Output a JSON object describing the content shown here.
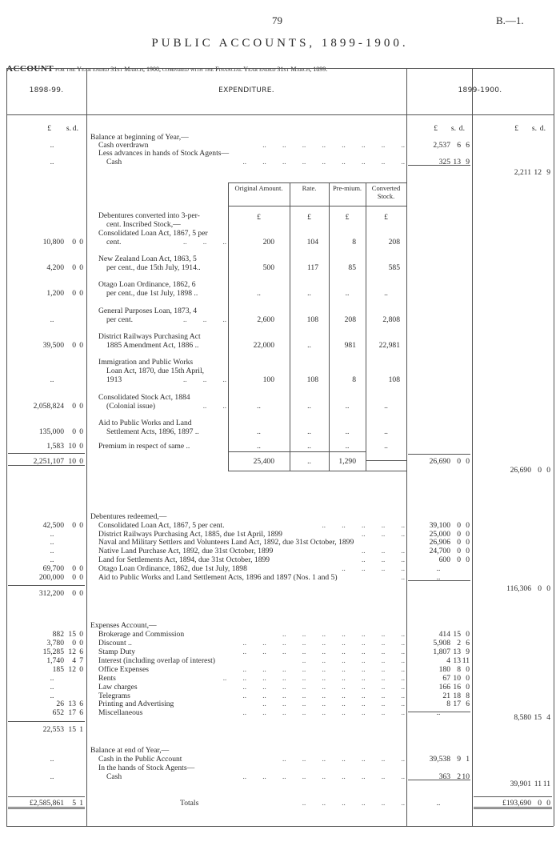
{
  "header": {
    "page_number": "79",
    "ref": "B.—1.",
    "title": "PUBLIC ACCOUNTS, 1899-1900.",
    "subtitle_bold": "ACCOUNT",
    "subtitle_rest": "for the Year ended 31st March, 1900, compared with the Financial Year ended 31st March, 1899."
  },
  "table": {
    "col_headers": [
      "1898-99.",
      "EXPENDITURE.",
      "1899-1900."
    ],
    "currency_header": [
      "£",
      "s.",
      "d."
    ]
  },
  "conversion": {
    "headers": [
      "Original Amount.",
      "Rate.",
      "Pre-mium.",
      "Converted Stock."
    ],
    "currency": [
      "£",
      "£",
      "£",
      "£"
    ]
  },
  "lines": [
    {
      "t": "Balance at beginning of Year,—",
      "i": 0
    },
    {
      "t": "Cash overdrawn",
      "i": 1,
      "dots": ".. .. .. .. .. .. .. ..",
      "p": "..",
      "c": [
        "2,537",
        "6",
        "6"
      ]
    },
    {
      "t": "Less advances in hands of Stock Agents—",
      "i": 1
    },
    {
      "t": "Cash",
      "i": 2,
      "dots": ".. .. .. .. .. .. .. .. ..",
      "p": "..",
      "c": [
        "325",
        "13",
        "9"
      ]
    },
    {
      "k": [
        "2,211",
        "12",
        "9"
      ]
    },
    {
      "t": "Debentures converted into 3-per-",
      "i": 1,
      "n": 1
    },
    {
      "t": "cent. Inscribed Stock,—",
      "i": 2,
      "n": 1
    },
    {
      "t": "Consolidated Loan Act, 1867, 5 per",
      "i": 1,
      "n": 1
    },
    {
      "t": "cent.",
      "i": 2,
      "n": 1,
      "dots": ".. .. ..",
      "p": [
        "10,800",
        "0",
        "0"
      ],
      "v": [
        "200",
        "104",
        "8",
        "208"
      ]
    },
    {
      "t": "New Zealand Loan Act, 1863, 5",
      "i": 1,
      "n": 1
    },
    {
      "t": "per cent., due 15th July, 1914..",
      "i": 2,
      "n": 1,
      "p": [
        "4,200",
        "0",
        "0"
      ],
      "v": [
        "500",
        "117",
        "85",
        "585"
      ]
    },
    {
      "t": "Otago Loan Ordinance, 1862, 6",
      "i": 1,
      "n": 1
    },
    {
      "t": "per cent., due 1st July, 1898 ..",
      "i": 2,
      "n": 1,
      "p": [
        "1,200",
        "0",
        "0"
      ],
      "v": [
        "..",
        "..",
        "..",
        ".."
      ]
    },
    {
      "t": "General Purposes Loan, 1873, 4",
      "i": 1,
      "n": 1
    },
    {
      "t": "per cent.",
      "i": 2,
      "n": 1,
      "dots": ".. .. ..",
      "p": "..",
      "v": [
        "2,600",
        "108",
        "208",
        "2,808"
      ]
    },
    {
      "t": "District Railways Purchasing Act",
      "i": 1,
      "n": 1
    },
    {
      "t": "1885 Amendment Act, 1886 ..",
      "i": 2,
      "n": 1,
      "p": [
        "39,500",
        "0",
        "0"
      ],
      "v": [
        "22,000",
        "..",
        "981",
        "22,981"
      ]
    },
    {
      "t": "Immigration and Public Works",
      "i": 1,
      "n": 1
    },
    {
      "t": "Loan Act, 1870, due 15th April,",
      "i": 2,
      "n": 1
    },
    {
      "t": "1913",
      "i": 2,
      "n": 1,
      "dots": ".. .. ..",
      "p": "..",
      "v": [
        "100",
        "108",
        "8",
        "108"
      ]
    },
    {
      "t": "Consolidated Stock Act, 1884",
      "i": 1,
      "n": 1
    },
    {
      "t": "(Colonial issue)",
      "i": 2,
      "n": 1,
      "dots": ".. ..",
      "p": [
        "2,058,824",
        "0",
        "0"
      ],
      "v": [
        "..",
        "..",
        "..",
        ".."
      ]
    },
    {
      "t": "Aid to Public Works and Land",
      "i": 1,
      "n": 1
    },
    {
      "t": "Settlement Acts, 1896, 1897 ..",
      "i": 2,
      "n": 1,
      "p": [
        "135,000",
        "0",
        "0"
      ],
      "v": [
        "..",
        "..",
        "..",
        ".."
      ]
    },
    {
      "t": "Premium in respect of same ..",
      "i": 1,
      "n": 1,
      "p": [
        "1,583",
        "10",
        "0"
      ],
      "v": [
        "..",
        "..",
        "..",
        ".."
      ]
    },
    {
      "p": [
        "2,251,107",
        "10",
        "0"
      ],
      "v": [
        "25,400",
        "..",
        "1,290",
        ""
      ],
      "c": [
        "26,690",
        "0",
        "0"
      ]
    },
    {
      "k": [
        "26,690",
        "0",
        "0"
      ]
    },
    {
      "t": "Debentures redeemed,—",
      "i": 0
    },
    {
      "t": "Consolidated Loan Act, 1867, 5 per cent.",
      "i": 1,
      "dots": ".. .. .. .. ..",
      "p": [
        "42,500",
        "0",
        "0"
      ],
      "c": [
        "39,100",
        "0",
        "0"
      ]
    },
    {
      "t": "District Railways Purchasing Act, 1885, due 1st April, 1899",
      "i": 1,
      "dots": ".. .. ..",
      "p": "..",
      "c": [
        "25,000",
        "0",
        "0"
      ]
    },
    {
      "t": "Naval and Military Settlers and Volunteers Land Act, 1892, due 31st October, 1899",
      "i": 1,
      "p": "..",
      "c": [
        "26,906",
        "0",
        "0"
      ]
    },
    {
      "t": "Native Land Purchase Act, 1892, due 31st October, 1899",
      "i": 1,
      "dots": ".. .. ..",
      "p": "..",
      "c": [
        "24,700",
        "0",
        "0"
      ]
    },
    {
      "t": "Land for Settlements Act, 1894, due 31st October, 1899",
      "i": 1,
      "dots": ".. .. ..",
      "p": "..",
      "c": [
        "600",
        "0",
        "0"
      ]
    },
    {
      "t": "Otago Loan Ordinance, 1862, due 1st July, 1898",
      "i": 1,
      "dots": ".. .. .. ..",
      "p": [
        "69,700",
        "0",
        "0"
      ],
      "c": ".."
    },
    {
      "t": "Aid to Public Works and Land Settlement Acts, 1896 and 1897 (Nos. 1 and 5)",
      "i": 1,
      "dots": "..",
      "p": [
        "200,000",
        "0",
        "0"
      ],
      "c": ".."
    },
    {
      "k": [
        "116,306",
        "0",
        "0"
      ]
    },
    {
      "p": [
        "312,200",
        "0",
        "0"
      ]
    },
    {
      "t": "Expenses Account,—",
      "i": 0
    },
    {
      "t": "Brokerage and Commission",
      "i": 1,
      "dots": ".. .. .. .. .. .. ..",
      "p": [
        "882",
        "15",
        "0"
      ],
      "c": [
        "414",
        "15",
        "0"
      ]
    },
    {
      "t": "Discount ..",
      "i": 1,
      "dots": ".. .. .. .. .. .. .. .. ..",
      "p": [
        "3,780",
        "0",
        "0"
      ],
      "c": [
        "5,908",
        "2",
        "6"
      ]
    },
    {
      "t": "Stamp Duty",
      "i": 1,
      "dots": ".. .. .. .. .. .. .. .. ..",
      "p": [
        "15,285",
        "12",
        "6"
      ],
      "c": [
        "1,807",
        "13",
        "9"
      ]
    },
    {
      "t": "Interest (including overlap of interest)",
      "i": 1,
      "dots": ".. .. .. .. .. ..",
      "p": [
        "1,740",
        "4",
        "7"
      ],
      "c": [
        "4",
        "13",
        "11"
      ]
    },
    {
      "t": "Office Expenses",
      "i": 1,
      "dots": ".. .. .. .. .. .. .. .. ..",
      "p": [
        "185",
        "12",
        "0"
      ],
      "c": [
        "180",
        "8",
        "0"
      ]
    },
    {
      "t": "Rents",
      "i": 1,
      "dots": ".. .. .. .. .. .. .. .. .. ..",
      "p": "..",
      "c": [
        "67",
        "10",
        "0"
      ]
    },
    {
      "t": "Law charges",
      "i": 1,
      "dots": ".. .. .. .. .. .. .. .. ..",
      "p": "..",
      "c": [
        "166",
        "16",
        "0"
      ]
    },
    {
      "t": "Telegrams",
      "i": 1,
      "dots": ".. .. .. .. .. .. .. .. ..",
      "p": "..",
      "c": [
        "21",
        "18",
        "8"
      ]
    },
    {
      "t": "Printing and Advertising",
      "i": 1,
      "dots": ".. .. .. .. .. .. .. ..",
      "p": [
        "26",
        "13",
        "6"
      ],
      "c": [
        "8",
        "17",
        "6"
      ]
    },
    {
      "t": "Miscellaneous",
      "i": 1,
      "dots": ".. .. .. .. .. .. .. .. ..",
      "p": [
        "652",
        "17",
        "6"
      ],
      "c": ".."
    },
    {
      "k": [
        "8,580",
        "15",
        "4"
      ]
    },
    {
      "p": [
        "22,553",
        "15",
        "1"
      ]
    },
    {
      "t": "Balance at end of Year,—",
      "i": 0
    },
    {
      "t": "Cash in the Public Account",
      "i": 1,
      "dots": ".. .. .. .. .. .. ..",
      "p": "..",
      "c": [
        "39,538",
        "9",
        "1"
      ]
    },
    {
      "t": "In the hands of Stock Agents—",
      "i": 1
    },
    {
      "t": "Cash",
      "i": 2,
      "dots": ".. .. .. .. .. .. .. .. ..",
      "p": "..",
      "c": [
        "363",
        "2",
        "10"
      ]
    },
    {
      "k": [
        "39,901",
        "11",
        "11"
      ]
    },
    {
      "t": "Totals",
      "i": 3,
      "dots": ".. .. .. .. .. ..",
      "p": [
        "£2,585,861",
        "5",
        "1"
      ],
      "c": "..",
      "k": [
        "£193,690",
        "0",
        "0"
      ]
    }
  ]
}
